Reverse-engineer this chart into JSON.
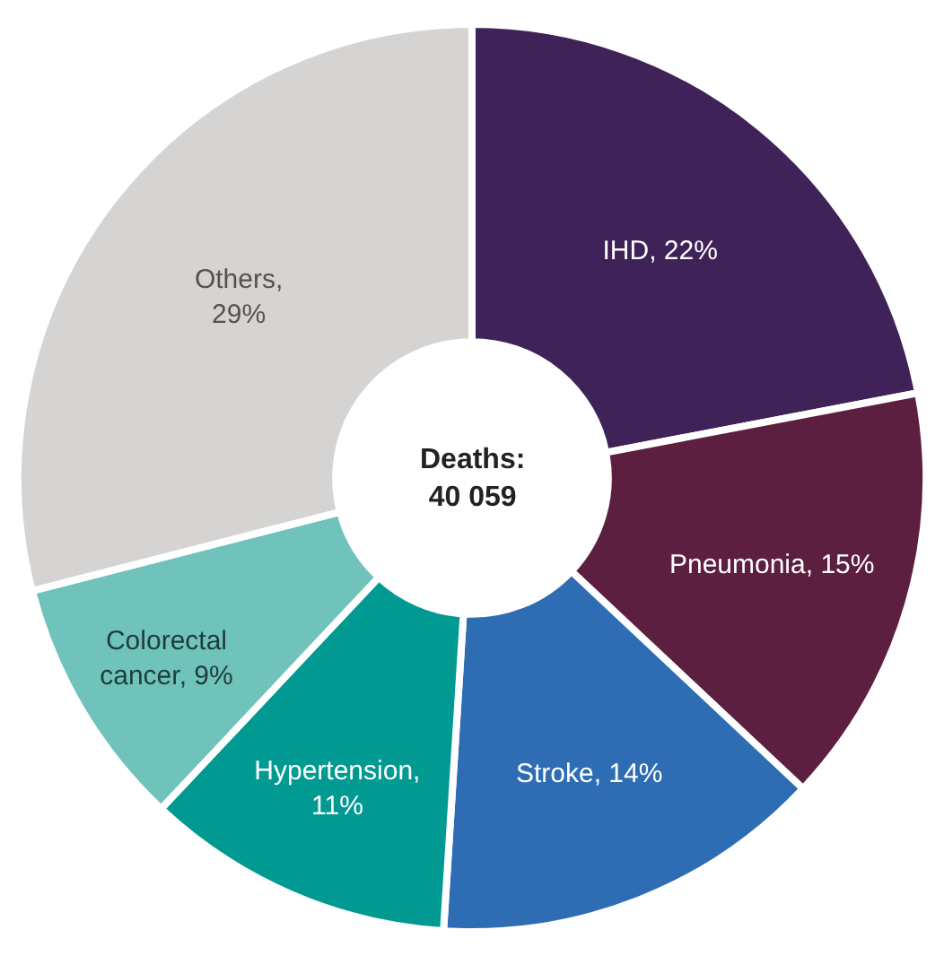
{
  "chart_data": {
    "type": "donut",
    "categories": [
      "IHD",
      "Pneumonia",
      "Stroke",
      "Hypertension",
      "Colorectal cancer",
      "Others"
    ],
    "values": [
      22,
      15,
      14,
      11,
      9,
      29
    ],
    "colors": [
      "#3f2358",
      "#5c1f40",
      "#2e6db4",
      "#009a93",
      "#6fc3bb",
      "#d6d4d2"
    ],
    "value_labels": [
      ", 22%",
      ", 15%",
      ", 14%",
      ",\n11%",
      ", 9%",
      ",\n29%"
    ],
    "annotations": [
      "Deaths:\n40 059"
    ],
    "legend": false
  }
}
